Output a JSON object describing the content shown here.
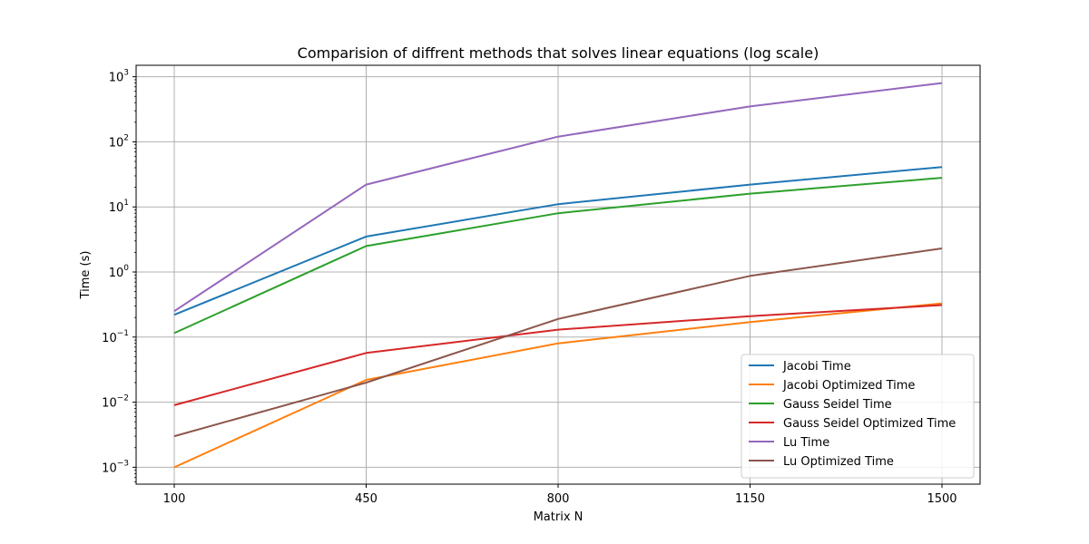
{
  "chart_data": {
    "type": "line",
    "title": "Comparision of diffrent methods that solves linear equations (log scale)",
    "xlabel": "Matrix N",
    "ylabel": "Time (s)",
    "yscale": "log",
    "x": [
      100,
      450,
      800,
      1150,
      1500
    ],
    "x_tick_labels": [
      "100",
      "450",
      "800",
      "1150",
      "1500"
    ],
    "xlim": [
      100,
      1500
    ],
    "ylim": [
      0.00055,
      1500
    ],
    "y_ticks": [
      {
        "base": "10",
        "exp": "−3",
        "value": 0.001
      },
      {
        "base": "10",
        "exp": "−2",
        "value": 0.01
      },
      {
        "base": "10",
        "exp": "−1",
        "value": 0.1
      },
      {
        "base": "10",
        "exp": "0",
        "value": 1
      },
      {
        "base": "10",
        "exp": "1",
        "value": 10
      },
      {
        "base": "10",
        "exp": "2",
        "value": 100
      },
      {
        "base": "10",
        "exp": "3",
        "value": 1000
      }
    ],
    "grid": true,
    "legend_position": "lower-right",
    "series": [
      {
        "name": "Jacobi Time",
        "color": "#1f77b4",
        "values": [
          0.22,
          3.5,
          11,
          22,
          41
        ]
      },
      {
        "name": "Jacobi Optimized Time",
        "color": "#ff7f0e",
        "values": [
          0.001,
          0.022,
          0.08,
          0.17,
          0.33
        ]
      },
      {
        "name": "Gauss Seidel Time",
        "color": "#2ca02c",
        "values": [
          0.115,
          2.5,
          8,
          16,
          28
        ]
      },
      {
        "name": "Gauss Seidel Optimized Time",
        "color": "#d62728",
        "values": [
          0.009,
          0.057,
          0.13,
          0.21,
          0.31
        ]
      },
      {
        "name": "Lu Time",
        "color": "#9467bd",
        "values": [
          0.25,
          22,
          120,
          350,
          800
        ]
      },
      {
        "name": "Lu Optimized Time",
        "color": "#8c564b",
        "values": [
          0.003,
          0.02,
          0.19,
          0.87,
          2.3
        ]
      }
    ]
  }
}
